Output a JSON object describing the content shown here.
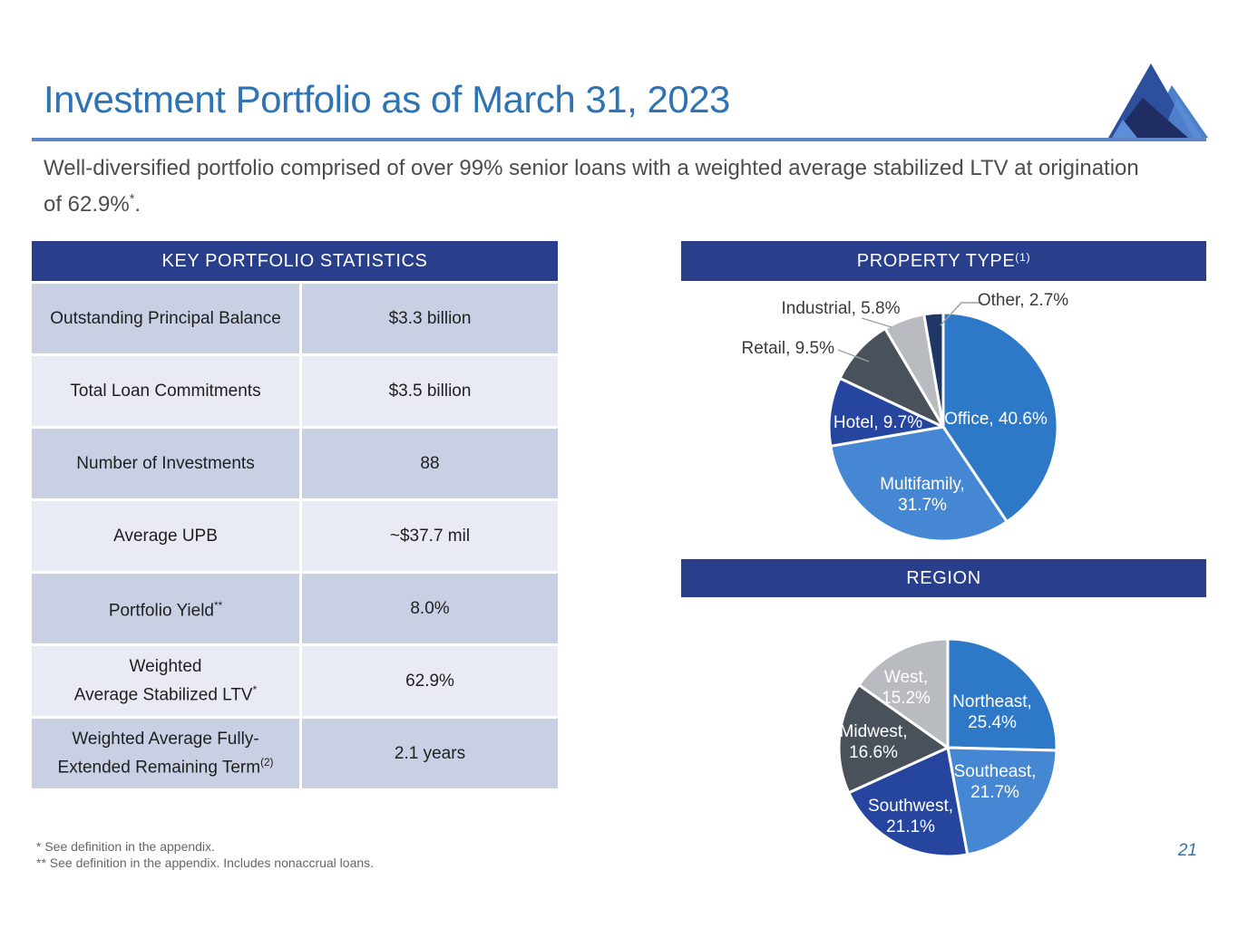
{
  "slide": {
    "title": "Investment Portfolio as of March 31, 2023",
    "subtitle": {
      "line1": "Well-diversified portfolio comprised of over 99% senior loans with a weighted average stabilized LTV at origination",
      "line2": "of 62.9%",
      "sup": "*",
      "period": "."
    },
    "footnotes": [
      "* See definition in the appendix.",
      "** See definition in the appendix. Includes nonaccrual loans."
    ],
    "page_number": "21"
  },
  "colors": {
    "title_blue": "#2E74B5",
    "rule_blue": "#5E86C6",
    "panel_header_blue": "#293F8C",
    "table_row_dark": "#C9D0E3",
    "table_row_light": "#E9EBF4"
  },
  "stats_table": {
    "title": "KEY PORTFOLIO STATISTICS",
    "rows": [
      {
        "label_lines": [
          {
            "t": "Outstanding Principal Balance",
            "sup": ""
          }
        ],
        "value": "$3.3 billion"
      },
      {
        "label_lines": [
          {
            "t": "Total Loan Commitments",
            "sup": ""
          }
        ],
        "value": "$3.5 billion"
      },
      {
        "label_lines": [
          {
            "t": "Number of Investments",
            "sup": ""
          }
        ],
        "value": "88"
      },
      {
        "label_lines": [
          {
            "t": "Average UPB",
            "sup": ""
          }
        ],
        "value": "~$37.7 mil"
      },
      {
        "label_lines": [
          {
            "t": "Portfolio Yield",
            "sup": "**"
          }
        ],
        "value": "8.0%"
      },
      {
        "label_lines": [
          {
            "t": "Weighted",
            "sup": ""
          },
          {
            "t": "Average Stabilized LTV",
            "sup": "*"
          }
        ],
        "value": "62.9%"
      },
      {
        "label_lines": [
          {
            "t": "Weighted Average Fully-",
            "sup": ""
          },
          {
            "t": "Extended Remaining Term",
            "sup": "(2)"
          }
        ],
        "value": "2.1 years"
      }
    ]
  },
  "chart_data": [
    {
      "type": "pie",
      "title": "PROPERTY TYPE",
      "title_sup": "(1)",
      "start_angle_deg": 0,
      "direction": "clockwise",
      "slices": [
        {
          "name": "Office",
          "value": 40.6,
          "label": "Office, 40.6%",
          "color": "#2E78C8",
          "label_style": "inside-white"
        },
        {
          "name": "Multifamily",
          "value": 31.7,
          "label": "Multifamily,\n31.7%",
          "color": "#4687D4",
          "label_style": "inside-white"
        },
        {
          "name": "Hotel",
          "value": 9.7,
          "label": "Hotel, 9.7%",
          "color": "#26459E",
          "label_style": "inside-white"
        },
        {
          "name": "Retail",
          "value": 9.5,
          "label": "Retail, 9.5%",
          "color": "#49525B",
          "label_style": "outside-dark"
        },
        {
          "name": "Industrial",
          "value": 5.8,
          "label": "Industrial, 5.8%",
          "color": "#B8BCC0",
          "label_style": "outside-dark"
        },
        {
          "name": "Other",
          "value": 2.7,
          "label": "Other, 2.7%",
          "color": "#1E3766",
          "label_style": "outside-dark"
        }
      ]
    },
    {
      "type": "pie",
      "title": "REGION",
      "title_sup": "",
      "start_angle_deg": 0,
      "direction": "clockwise",
      "slices": [
        {
          "name": "Northeast",
          "value": 25.4,
          "label": "Northeast,\n25.4%",
          "color": "#2E78C8",
          "label_style": "inside-white"
        },
        {
          "name": "Southeast",
          "value": 21.7,
          "label": "Southeast,\n21.7%",
          "color": "#4687D4",
          "label_style": "inside-white"
        },
        {
          "name": "Southwest",
          "value": 21.1,
          "label": "Southwest,\n21.1%",
          "color": "#26459E",
          "label_style": "inside-white"
        },
        {
          "name": "Midwest",
          "value": 16.6,
          "label": "Midwest,\n16.6%",
          "color": "#49525B",
          "label_style": "inside-white"
        },
        {
          "name": "West",
          "value": 15.2,
          "label": "West,\n15.2%",
          "color": "#B8BCC0",
          "label_style": "inside-white"
        }
      ]
    }
  ]
}
